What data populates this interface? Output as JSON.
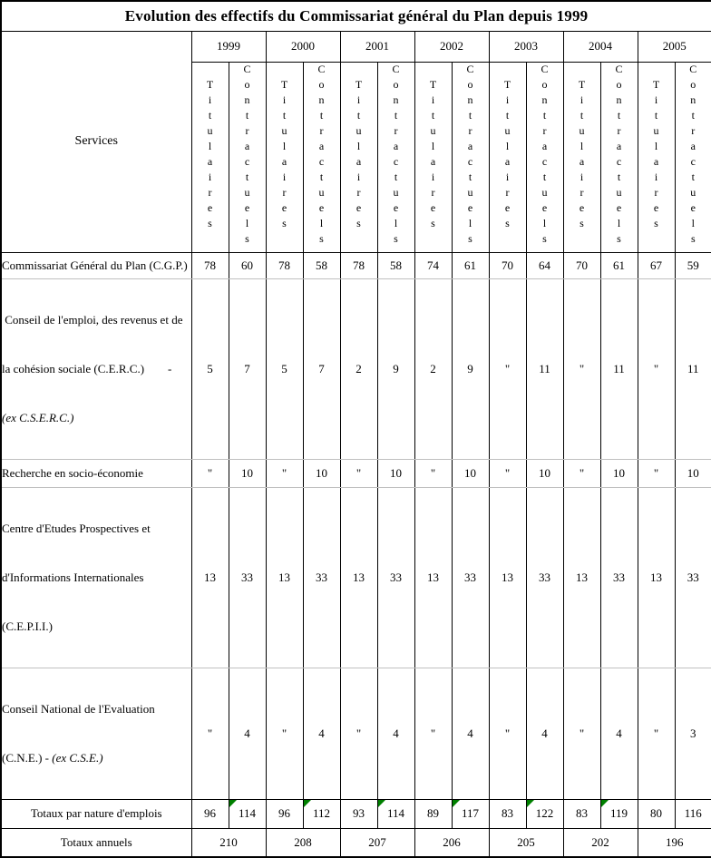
{
  "title": "Evolution des effectifs du Commissariat général du Plan depuis 1999",
  "colors": {
    "grid_line": "#000000",
    "row_separator_gray": "#c0c0c0",
    "note_marker_green": "#008000",
    "background": "#ffffff",
    "text": "#000000"
  },
  "header": {
    "services_label": "Services",
    "years": [
      "1999",
      "2000",
      "2001",
      "2002",
      "2003",
      "2004",
      "2005"
    ],
    "subcol_labels": {
      "first": "Titulaires",
      "second": "Contractuels"
    }
  },
  "services_rows": [
    {
      "label": "Commissariat Général du Plan (C.G.P.)",
      "values": [
        "78",
        "60",
        "78",
        "58",
        "78",
        "58",
        "74",
        "61",
        "70",
        "64",
        "70",
        "61",
        "67",
        "59"
      ]
    },
    {
      "l1": " Conseil de l'emploi, des revenus et de",
      "l2": "la cohésion sociale (C.E.R.C.)        -",
      "italic": "(ex C.S.E.R.C.)",
      "values": [
        "5",
        "7",
        "5",
        "7",
        "2",
        "9",
        "2",
        "9",
        "\"",
        "11",
        "\"",
        "11",
        "\"",
        "11"
      ]
    },
    {
      "label": "Recherche en socio-économie",
      "values": [
        "\"",
        "10",
        "\"",
        "10",
        "\"",
        "10",
        "\"",
        "10",
        "\"",
        "10",
        "\"",
        "10",
        "\"",
        "10"
      ]
    },
    {
      "l1": "Centre d'Etudes Prospectives et",
      "l2": "d'Informations Internationales",
      "l3": "(C.E.P.I.I.)",
      "values": [
        "13",
        "33",
        "13",
        "33",
        "13",
        "33",
        "13",
        "33",
        "13",
        "33",
        "13",
        "33",
        "13",
        "33"
      ]
    },
    {
      "l1": "Conseil National de l'Evaluation",
      "l2_prefix": "(C.N.E.) - ",
      "italic": "(ex C.S.E.)",
      "values": [
        "\"",
        "4",
        "\"",
        "4",
        "\"",
        "4",
        "\"",
        "4",
        "\"",
        "4",
        "\"",
        "4",
        "\"",
        "3"
      ]
    }
  ],
  "totals_row": {
    "label": "Totaux par nature d'emplois",
    "values": [
      "96",
      "114",
      "96",
      "112",
      "93",
      "114",
      "89",
      "117",
      "83",
      "122",
      "83",
      "119",
      "80",
      "116"
    ],
    "marker_cells": [
      1,
      3,
      5,
      7,
      9,
      11
    ]
  },
  "annual_totals_row": {
    "label": "Totaux annuels",
    "values": [
      "210",
      "208",
      "207",
      "206",
      "205",
      "202",
      "196"
    ]
  }
}
